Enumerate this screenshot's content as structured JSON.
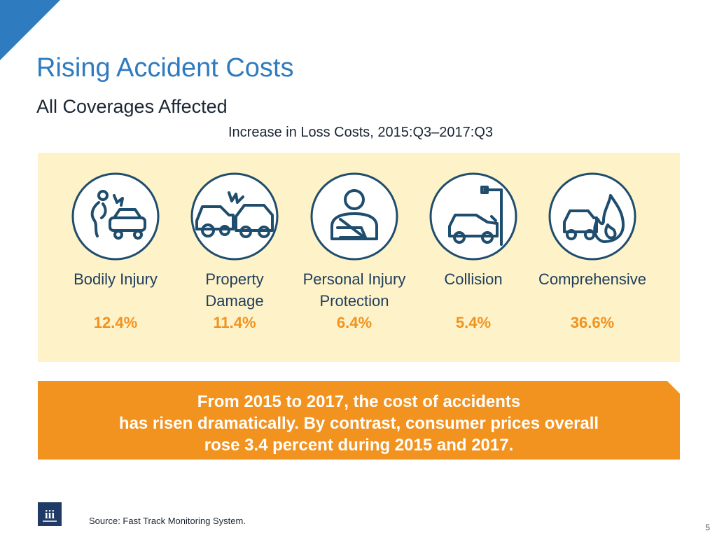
{
  "slide": {
    "title": "Rising Accident Costs",
    "subtitle": "All Coverages Affected",
    "caption": "Increase in Loss Costs, 2015:Q3–2017:Q3"
  },
  "colors": {
    "accent_blue": "#2f7bbf",
    "icon_navy": "#1f4d6e",
    "panel_cream": "#fdf2c8",
    "highlight_orange": "#f2921f"
  },
  "coverages": [
    {
      "icon": "bodily-injury-icon",
      "label_lines": [
        "Bodily Injury",
        ""
      ],
      "value": "12.4%"
    },
    {
      "icon": "property-damage-icon",
      "label_lines": [
        "Property",
        "Damage"
      ],
      "value": "11.4%"
    },
    {
      "icon": "personal-injury-protection-icon",
      "label_lines": [
        "Personal Injury",
        "Protection"
      ],
      "value": "6.4%"
    },
    {
      "icon": "collision-icon",
      "label_lines": [
        "Collision",
        ""
      ],
      "value": "5.4%"
    },
    {
      "icon": "comprehensive-icon",
      "label_lines": [
        "Comprehensive",
        ""
      ],
      "value": "36.6%"
    }
  ],
  "banner": {
    "lines": [
      "From 2015 to 2017, the cost of accidents",
      "has risen dramatically. By contrast, consumer prices overall",
      "rose 3.4 percent during 2015 and 2017."
    ]
  },
  "footer": {
    "logo_text": "iii",
    "source": "Source: Fast Track Monitoring System.",
    "page_number": "5"
  }
}
